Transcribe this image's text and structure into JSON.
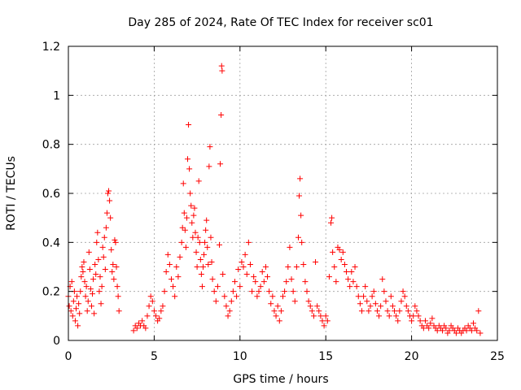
{
  "chart_data": {
    "type": "scatter",
    "title": "Day 285 of 2024, Rate Of TEC Index for receiver sc01",
    "xlabel": "GPS time / hours",
    "ylabel": "ROTI / TECUs",
    "xlim": [
      0,
      25
    ],
    "ylim": [
      0,
      1.2
    ],
    "x_ticks": [
      "0",
      "5",
      "10",
      "15",
      "20",
      "25"
    ],
    "y_ticks": [
      "0",
      "0.2",
      "0.4",
      "0.6",
      "0.8",
      "1",
      "1.2"
    ],
    "grid": true,
    "marker": "plus",
    "color": "#ff0000",
    "series": [
      {
        "points": [
          [
            0.0,
            0.18
          ],
          [
            0.05,
            0.14
          ],
          [
            0.1,
            0.22
          ],
          [
            0.15,
            0.12
          ],
          [
            0.2,
            0.24
          ],
          [
            0.25,
            0.1
          ],
          [
            0.3,
            0.16
          ],
          [
            0.35,
            0.2
          ],
          [
            0.4,
            0.08
          ],
          [
            0.45,
            0.13
          ],
          [
            0.5,
            0.18
          ],
          [
            0.55,
            0.06
          ],
          [
            0.6,
            0.15
          ],
          [
            0.65,
            0.11
          ],
          [
            0.7,
            0.2
          ],
          [
            0.75,
            0.26
          ],
          [
            0.8,
            0.3
          ],
          [
            0.85,
            0.28
          ],
          [
            0.9,
            0.32
          ],
          [
            0.95,
            0.24
          ],
          [
            1.0,
            0.18
          ],
          [
            1.05,
            0.22
          ],
          [
            1.1,
            0.12
          ],
          [
            1.15,
            0.16
          ],
          [
            1.2,
            0.36
          ],
          [
            1.25,
            0.29
          ],
          [
            1.3,
            0.21
          ],
          [
            1.35,
            0.14
          ],
          [
            1.4,
            0.19
          ],
          [
            1.45,
            0.25
          ],
          [
            1.5,
            0.11
          ],
          [
            1.55,
            0.31
          ],
          [
            1.6,
            0.27
          ],
          [
            1.65,
            0.4
          ],
          [
            1.7,
            0.44
          ],
          [
            1.75,
            0.33
          ],
          [
            1.8,
            0.2
          ],
          [
            1.85,
            0.26
          ],
          [
            1.9,
            0.15
          ],
          [
            1.95,
            0.22
          ],
          [
            2.0,
            0.38
          ],
          [
            2.05,
            0.34
          ],
          [
            2.1,
            0.42
          ],
          [
            2.15,
            0.29
          ],
          [
            2.2,
            0.46
          ],
          [
            2.25,
            0.52
          ],
          [
            2.3,
            0.6
          ],
          [
            2.35,
            0.61
          ],
          [
            2.4,
            0.57
          ],
          [
            2.45,
            0.5
          ],
          [
            2.5,
            0.37
          ],
          [
            2.55,
            0.28
          ],
          [
            2.6,
            0.31
          ],
          [
            2.65,
            0.25
          ],
          [
            2.7,
            0.41
          ],
          [
            2.75,
            0.4
          ],
          [
            2.8,
            0.3
          ],
          [
            2.85,
            0.22
          ],
          [
            2.9,
            0.18
          ],
          [
            2.95,
            0.12
          ],
          [
            3.8,
            0.04
          ],
          [
            3.9,
            0.06
          ],
          [
            4.0,
            0.05
          ],
          [
            4.1,
            0.07
          ],
          [
            4.2,
            0.06
          ],
          [
            4.3,
            0.08
          ],
          [
            4.4,
            0.06
          ],
          [
            4.5,
            0.05
          ],
          [
            4.6,
            0.1
          ],
          [
            4.7,
            0.14
          ],
          [
            4.8,
            0.18
          ],
          [
            4.9,
            0.16
          ],
          [
            5.0,
            0.12
          ],
          [
            5.1,
            0.1
          ],
          [
            5.2,
            0.08
          ],
          [
            5.3,
            0.09
          ],
          [
            5.4,
            0.12
          ],
          [
            5.5,
            0.14
          ],
          [
            5.6,
            0.2
          ],
          [
            5.7,
            0.28
          ],
          [
            5.8,
            0.35
          ],
          [
            5.9,
            0.31
          ],
          [
            6.0,
            0.25
          ],
          [
            6.1,
            0.22
          ],
          [
            6.2,
            0.18
          ],
          [
            6.3,
            0.3
          ],
          [
            6.4,
            0.26
          ],
          [
            6.5,
            0.34
          ],
          [
            6.6,
            0.4
          ],
          [
            6.65,
            0.46
          ],
          [
            6.7,
            0.64
          ],
          [
            6.75,
            0.52
          ],
          [
            6.8,
            0.45
          ],
          [
            6.85,
            0.38
          ],
          [
            6.9,
            0.5
          ],
          [
            6.95,
            0.74
          ],
          [
            7.0,
            0.88
          ],
          [
            7.05,
            0.7
          ],
          [
            7.1,
            0.6
          ],
          [
            7.15,
            0.55
          ],
          [
            7.2,
            0.48
          ],
          [
            7.25,
            0.42
          ],
          [
            7.3,
            0.51
          ],
          [
            7.35,
            0.54
          ],
          [
            7.4,
            0.44
          ],
          [
            7.45,
            0.36
          ],
          [
            7.5,
            0.3
          ],
          [
            7.55,
            0.42
          ],
          [
            7.6,
            0.65
          ],
          [
            7.65,
            0.4
          ],
          [
            7.7,
            0.33
          ],
          [
            7.75,
            0.27
          ],
          [
            7.8,
            0.22
          ],
          [
            7.85,
            0.3
          ],
          [
            7.9,
            0.35
          ],
          [
            7.95,
            0.4
          ],
          [
            8.0,
            0.45
          ],
          [
            8.05,
            0.49
          ],
          [
            8.1,
            0.38
          ],
          [
            8.15,
            0.31
          ],
          [
            8.2,
            0.71
          ],
          [
            8.25,
            0.79
          ],
          [
            8.3,
            0.42
          ],
          [
            8.35,
            0.32
          ],
          [
            8.4,
            0.25
          ],
          [
            8.5,
            0.2
          ],
          [
            8.6,
            0.16
          ],
          [
            8.7,
            0.22
          ],
          [
            8.8,
            0.39
          ],
          [
            8.85,
            0.72
          ],
          [
            8.9,
            0.92
          ],
          [
            8.93,
            1.12
          ],
          [
            8.96,
            1.1
          ],
          [
            9.0,
            0.27
          ],
          [
            9.1,
            0.18
          ],
          [
            9.2,
            0.14
          ],
          [
            9.3,
            0.1
          ],
          [
            9.4,
            0.12
          ],
          [
            9.5,
            0.16
          ],
          [
            9.6,
            0.2
          ],
          [
            9.7,
            0.24
          ],
          [
            9.8,
            0.18
          ],
          [
            9.9,
            0.29
          ],
          [
            10.0,
            0.22
          ],
          [
            10.1,
            0.32
          ],
          [
            10.2,
            0.3
          ],
          [
            10.3,
            0.35
          ],
          [
            10.4,
            0.27
          ],
          [
            10.5,
            0.4
          ],
          [
            10.6,
            0.31
          ],
          [
            10.7,
            0.2
          ],
          [
            10.8,
            0.26
          ],
          [
            10.9,
            0.24
          ],
          [
            11.0,
            0.18
          ],
          [
            11.1,
            0.2
          ],
          [
            11.2,
            0.22
          ],
          [
            11.3,
            0.28
          ],
          [
            11.4,
            0.24
          ],
          [
            11.5,
            0.3
          ],
          [
            11.6,
            0.26
          ],
          [
            11.7,
            0.2
          ],
          [
            11.8,
            0.15
          ],
          [
            11.9,
            0.18
          ],
          [
            12.0,
            0.12
          ],
          [
            12.1,
            0.1
          ],
          [
            12.2,
            0.14
          ],
          [
            12.3,
            0.08
          ],
          [
            12.4,
            0.12
          ],
          [
            12.5,
            0.18
          ],
          [
            12.6,
            0.2
          ],
          [
            12.7,
            0.24
          ],
          [
            12.8,
            0.3
          ],
          [
            12.9,
            0.38
          ],
          [
            13.0,
            0.25
          ],
          [
            13.1,
            0.2
          ],
          [
            13.2,
            0.16
          ],
          [
            13.3,
            0.3
          ],
          [
            13.4,
            0.42
          ],
          [
            13.45,
            0.59
          ],
          [
            13.5,
            0.66
          ],
          [
            13.55,
            0.51
          ],
          [
            13.6,
            0.4
          ],
          [
            13.7,
            0.31
          ],
          [
            13.8,
            0.24
          ],
          [
            13.9,
            0.2
          ],
          [
            14.0,
            0.16
          ],
          [
            14.1,
            0.14
          ],
          [
            14.2,
            0.12
          ],
          [
            14.3,
            0.1
          ],
          [
            14.4,
            0.32
          ],
          [
            14.5,
            0.14
          ],
          [
            14.6,
            0.12
          ],
          [
            14.7,
            0.1
          ],
          [
            14.8,
            0.08
          ],
          [
            14.9,
            0.06
          ],
          [
            15.0,
            0.1
          ],
          [
            15.1,
            0.08
          ],
          [
            15.2,
            0.26
          ],
          [
            15.3,
            0.48
          ],
          [
            15.35,
            0.5
          ],
          [
            15.4,
            0.36
          ],
          [
            15.5,
            0.3
          ],
          [
            15.6,
            0.24
          ],
          [
            15.7,
            0.38
          ],
          [
            15.8,
            0.37
          ],
          [
            15.9,
            0.33
          ],
          [
            16.0,
            0.36
          ],
          [
            16.1,
            0.31
          ],
          [
            16.2,
            0.28
          ],
          [
            16.3,
            0.25
          ],
          [
            16.4,
            0.22
          ],
          [
            16.5,
            0.28
          ],
          [
            16.6,
            0.24
          ],
          [
            16.7,
            0.3
          ],
          [
            16.8,
            0.22
          ],
          [
            16.9,
            0.18
          ],
          [
            17.0,
            0.15
          ],
          [
            17.1,
            0.12
          ],
          [
            17.2,
            0.18
          ],
          [
            17.3,
            0.22
          ],
          [
            17.4,
            0.16
          ],
          [
            17.5,
            0.12
          ],
          [
            17.6,
            0.14
          ],
          [
            17.7,
            0.18
          ],
          [
            17.8,
            0.2
          ],
          [
            17.9,
            0.15
          ],
          [
            18.0,
            0.12
          ],
          [
            18.1,
            0.1
          ],
          [
            18.2,
            0.14
          ],
          [
            18.3,
            0.25
          ],
          [
            18.4,
            0.2
          ],
          [
            18.5,
            0.16
          ],
          [
            18.6,
            0.12
          ],
          [
            18.7,
            0.1
          ],
          [
            18.8,
            0.18
          ],
          [
            18.9,
            0.14
          ],
          [
            19.0,
            0.12
          ],
          [
            19.1,
            0.1
          ],
          [
            19.2,
            0.08
          ],
          [
            19.3,
            0.12
          ],
          [
            19.4,
            0.16
          ],
          [
            19.5,
            0.2
          ],
          [
            19.6,
            0.18
          ],
          [
            19.7,
            0.14
          ],
          [
            19.8,
            0.12
          ],
          [
            19.9,
            0.1
          ],
          [
            20.0,
            0.08
          ],
          [
            20.1,
            0.1
          ],
          [
            20.2,
            0.14
          ],
          [
            20.3,
            0.12
          ],
          [
            20.4,
            0.1
          ],
          [
            20.5,
            0.08
          ],
          [
            20.6,
            0.06
          ],
          [
            20.7,
            0.05
          ],
          [
            20.8,
            0.08
          ],
          [
            20.9,
            0.06
          ],
          [
            21.0,
            0.05
          ],
          [
            21.1,
            0.07
          ],
          [
            21.2,
            0.09
          ],
          [
            21.3,
            0.06
          ],
          [
            21.4,
            0.05
          ],
          [
            21.5,
            0.04
          ],
          [
            21.6,
            0.06
          ],
          [
            21.7,
            0.05
          ],
          [
            21.8,
            0.04
          ],
          [
            21.9,
            0.06
          ],
          [
            22.0,
            0.05
          ],
          [
            22.1,
            0.03
          ],
          [
            22.2,
            0.04
          ],
          [
            22.3,
            0.06
          ],
          [
            22.4,
            0.05
          ],
          [
            22.5,
            0.04
          ],
          [
            22.6,
            0.03
          ],
          [
            22.7,
            0.05
          ],
          [
            22.8,
            0.04
          ],
          [
            22.9,
            0.03
          ],
          [
            23.0,
            0.04
          ],
          [
            23.1,
            0.05
          ],
          [
            23.2,
            0.04
          ],
          [
            23.3,
            0.06
          ],
          [
            23.4,
            0.05
          ],
          [
            23.5,
            0.04
          ],
          [
            23.6,
            0.07
          ],
          [
            23.7,
            0.05
          ],
          [
            23.8,
            0.04
          ],
          [
            23.9,
            0.12
          ],
          [
            24.0,
            0.03
          ]
        ]
      }
    ]
  }
}
